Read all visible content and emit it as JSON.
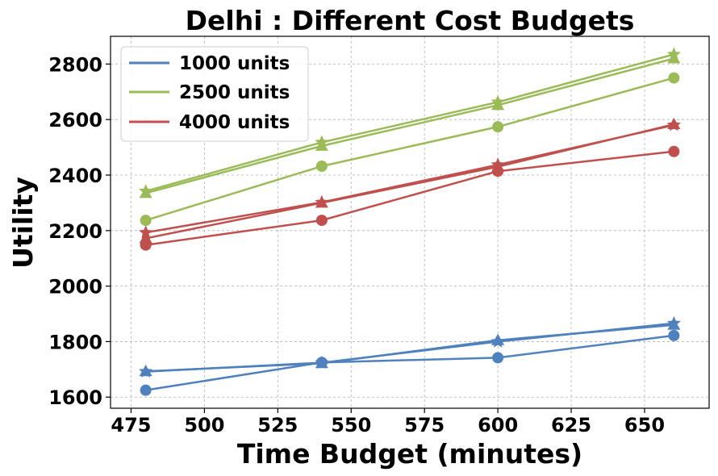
{
  "chart_data": {
    "type": "line",
    "title": "Delhi : Different Cost Budgets",
    "xlabel": "Time Budget (minutes)",
    "ylabel": "Utility",
    "xlim": [
      468,
      672
    ],
    "ylim": [
      1560,
      2900
    ],
    "xticks": [
      475,
      500,
      525,
      550,
      575,
      600,
      625,
      650
    ],
    "yticks": [
      1600,
      1800,
      2000,
      2200,
      2400,
      2600,
      2800
    ],
    "grid": true,
    "legend_position": "top-left",
    "x": [
      480,
      540,
      600,
      660
    ],
    "legend": [
      {
        "label": "1000 units",
        "color": "#4f81bd"
      },
      {
        "label": "2500 units",
        "color": "#9bbb59"
      },
      {
        "label": "4000 units",
        "color": "#c0504d"
      }
    ],
    "series": [
      {
        "group": "1000 units",
        "color": "#4f81bd",
        "marker": "circle",
        "values": [
          1625,
          1725,
          1742,
          1822
        ]
      },
      {
        "group": "1000 units",
        "color": "#4f81bd",
        "marker": "triangle",
        "values": [
          1693,
          1722,
          1805,
          1860
        ]
      },
      {
        "group": "1000 units",
        "color": "#4f81bd",
        "marker": "star",
        "values": [
          1692,
          1724,
          1800,
          1866
        ]
      },
      {
        "group": "2500 units",
        "color": "#9bbb59",
        "marker": "circle",
        "values": [
          2237,
          2432,
          2574,
          2750
        ]
      },
      {
        "group": "2500 units",
        "color": "#9bbb59",
        "marker": "triangle",
        "values": [
          2335,
          2505,
          2652,
          2820
        ]
      },
      {
        "group": "2500 units",
        "color": "#9bbb59",
        "marker": "star",
        "values": [
          2342,
          2518,
          2663,
          2835
        ]
      },
      {
        "group": "4000 units",
        "color": "#c0504d",
        "marker": "circle",
        "values": [
          2148,
          2237,
          2414,
          2485
        ]
      },
      {
        "group": "4000 units",
        "color": "#c0504d",
        "marker": "triangle",
        "values": [
          2172,
          2300,
          2430,
          2583
        ]
      },
      {
        "group": "4000 units",
        "color": "#c0504d",
        "marker": "star",
        "values": [
          2193,
          2302,
          2437,
          2580
        ]
      }
    ]
  }
}
